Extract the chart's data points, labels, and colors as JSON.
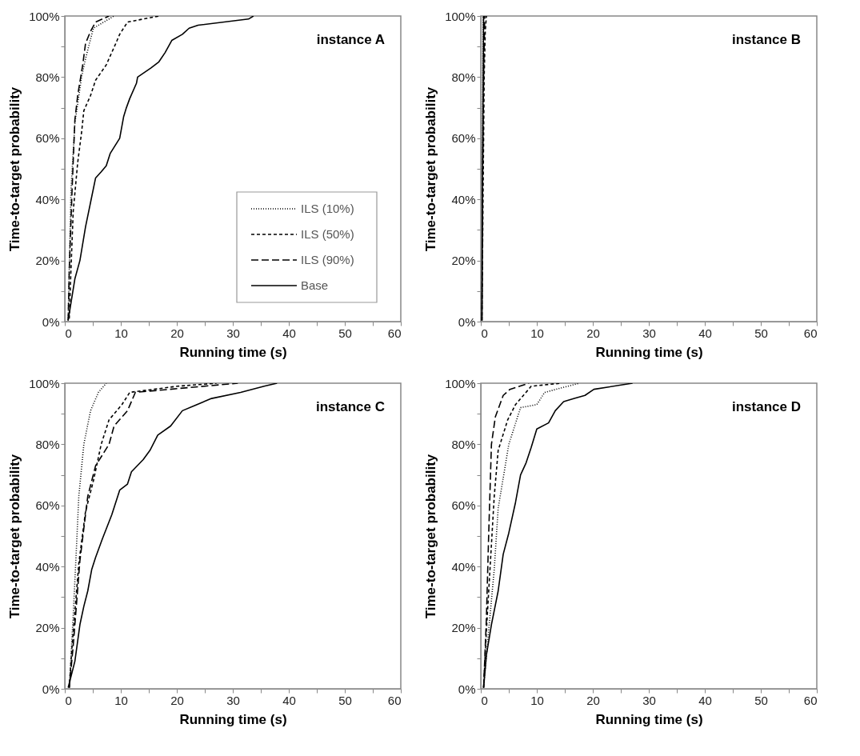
{
  "chart_data": [
    {
      "type": "line",
      "title": "instance A",
      "xlabel": "Running time (s)",
      "ylabel": "Time-to-target probability",
      "legend": "bottom right",
      "xlim": [
        0,
        60
      ],
      "ylim": [
        0,
        100
      ],
      "xticks": [
        0,
        {
          "value": 5,
          "label": null
        },
        10,
        {
          "value": 15,
          "label": null
        },
        20,
        {
          "value": 25,
          "label": null
        },
        30,
        {
          "value": 35,
          "label": null
        },
        40,
        {
          "value": 45,
          "label": null
        },
        50,
        {
          "value": 55,
          "label": null
        },
        60
      ],
      "yticks": [
        {
          "value": 0,
          "label": "0%"
        },
        {
          "value": 10,
          "label": null
        },
        {
          "value": 20,
          "label": "20%"
        },
        {
          "value": 30,
          "label": null
        },
        {
          "value": 40,
          "label": "40%"
        },
        {
          "value": 50,
          "label": null
        },
        {
          "value": 60,
          "label": "60%"
        },
        {
          "value": 70,
          "label": null
        },
        {
          "value": 80,
          "label": "80%"
        },
        {
          "value": 90,
          "label": null
        },
        {
          "value": 100,
          "label": "100%"
        }
      ],
      "series": [
        {
          "name": "ILS (10%)",
          "color": "#000000",
          "line_style": "dotted",
          "x": [
            0.6,
            1.1,
            1.8,
            3.0,
            3.7,
            5.1,
            8.8
          ],
          "values": [
            0.4,
            43,
            65,
            80,
            86,
            96,
            100
          ]
        },
        {
          "name": "ILS (50%)",
          "color": "#000000",
          "line_style": "dashed",
          "x": [
            0.8,
            1.1,
            1.5,
            2.3,
            3.0,
            3.4,
            4.6,
            5.5,
            7.4,
            9.1,
            9.8,
            11.2,
            16.8
          ],
          "values": [
            1,
            17,
            36,
            52,
            62,
            69,
            74,
            79,
            84,
            91,
            94,
            98,
            100
          ]
        },
        {
          "name": "ILS (90%)",
          "color": "#000000",
          "line_style": "dashed",
          "x": [
            0.6,
            0.8,
            1.3,
            1.8,
            2.3,
            3.2,
            3.7,
            4.6,
            5.5,
            7.9
          ],
          "values": [
            0.4,
            17,
            43,
            66,
            74,
            84,
            91,
            95,
            98,
            100
          ]
        },
        {
          "name": "Base",
          "color": "#000000",
          "line_style": "solid",
          "x": [
            0.6,
            1.8,
            2.7,
            3.7,
            4.6,
            5.5,
            6.5,
            7.4,
            8.1,
            9.8,
            10.5,
            11.0,
            11.6,
            12.8,
            13.0,
            15.4,
            16.8,
            17.9,
            19.1,
            21.0,
            22.2,
            23.8,
            32.8,
            33.7
          ],
          "values": [
            0.4,
            14,
            20,
            31,
            39,
            47,
            49,
            51,
            55,
            60,
            67,
            70,
            73,
            78,
            80,
            83,
            85,
            88,
            92,
            94,
            96,
            97,
            99,
            100
          ]
        }
      ]
    },
    {
      "type": "line",
      "title": "instance B",
      "xlabel": "Running time (s)",
      "ylabel": "Time-to-target probability",
      "xlim": [
        0,
        60
      ],
      "ylim": [
        0,
        100
      ],
      "xticks": [
        0,
        {
          "value": 5,
          "label": null
        },
        10,
        {
          "value": 15,
          "label": null
        },
        20,
        {
          "value": 25,
          "label": null
        },
        30,
        {
          "value": 35,
          "label": null
        },
        40,
        {
          "value": 45,
          "label": null
        },
        50,
        {
          "value": 55,
          "label": null
        },
        60
      ],
      "yticks": [
        {
          "value": 0,
          "label": "0%"
        },
        {
          "value": 10,
          "label": null
        },
        {
          "value": 20,
          "label": "20%"
        },
        {
          "value": 30,
          "label": null
        },
        {
          "value": 40,
          "label": "40%"
        },
        {
          "value": 50,
          "label": null
        },
        {
          "value": 60,
          "label": "60%"
        },
        {
          "value": 70,
          "label": null
        },
        {
          "value": 80,
          "label": "80%"
        },
        {
          "value": 90,
          "label": null
        },
        {
          "value": 100,
          "label": "100%"
        }
      ],
      "series": [
        {
          "color": "#000000",
          "line_style": "dotted",
          "x": [
            0.2,
            0.3,
            0.35,
            0.4
          ],
          "values": [
            0.4,
            30,
            70,
            100
          ]
        },
        {
          "color": "#000000",
          "line_style": "dashed",
          "x": [
            0.2,
            0.4,
            0.6,
            0.8,
            1.0
          ],
          "values": [
            0.4,
            40,
            80,
            95,
            100
          ]
        },
        {
          "color": "#000000",
          "line_style": "dashed",
          "x": [
            0.2,
            0.3,
            0.5,
            0.7
          ],
          "values": [
            0.4,
            40,
            80,
            100
          ]
        },
        {
          "color": "#000000",
          "line_style": "solid",
          "x": [
            0.2,
            0.3,
            0.5
          ],
          "values": [
            0.4,
            50,
            100
          ]
        }
      ]
    },
    {
      "type": "line",
      "title": "instance C",
      "xlabel": "Running time (s)",
      "ylabel": "Time-to-target probability",
      "xlim": [
        0,
        60
      ],
      "ylim": [
        0,
        100
      ],
      "xticks": [
        0,
        {
          "value": 5,
          "label": null
        },
        10,
        {
          "value": 15,
          "label": null
        },
        20,
        {
          "value": 25,
          "label": null
        },
        30,
        {
          "value": 35,
          "label": null
        },
        40,
        {
          "value": 45,
          "label": null
        },
        50,
        {
          "value": 55,
          "label": null
        },
        60
      ],
      "yticks": [
        {
          "value": 0,
          "label": "0%"
        },
        {
          "value": 10,
          "label": null
        },
        {
          "value": 20,
          "label": "20%"
        },
        {
          "value": 30,
          "label": null
        },
        {
          "value": 40,
          "label": "40%"
        },
        {
          "value": 50,
          "label": null
        },
        {
          "value": 60,
          "label": "60%"
        },
        {
          "value": 70,
          "label": null
        },
        {
          "value": 80,
          "label": "80%"
        },
        {
          "value": 90,
          "label": null
        },
        {
          "value": 100,
          "label": "100%"
        }
      ],
      "series": [
        {
          "color": "#000000",
          "line_style": "dotted",
          "x": [
            0.8,
            1.5,
            2.0,
            2.5,
            3.4,
            4.6,
            6.0,
            7.4
          ],
          "values": [
            0.4,
            24,
            43,
            63,
            80,
            91,
            97,
            100
          ]
        },
        {
          "color": "#000000",
          "line_style": "dashed",
          "x": [
            0.8,
            1.3,
            2.5,
            3.7,
            5.1,
            6.5,
            7.9,
            10.2,
            11.6,
            20.1,
            27.1
          ],
          "values": [
            0.4,
            14,
            41,
            58,
            68,
            80,
            88,
            93,
            97,
            99,
            100
          ]
        },
        {
          "color": "#000000",
          "line_style": "dashed",
          "x": [
            0.8,
            1.5,
            2.7,
            4.1,
            5.5,
            7.9,
            8.8,
            11.2,
            12.6,
            30.9
          ],
          "values": [
            0.4,
            14,
            42,
            63,
            73,
            80,
            86,
            91,
            97,
            100
          ]
        },
        {
          "color": "#000000",
          "line_style": "solid",
          "x": [
            0.6,
            1.8,
            2.7,
            3.4,
            4.1,
            4.8,
            5.5,
            6.7,
            8.4,
            9.8,
            11.2,
            11.9,
            14.0,
            15.2,
            16.6,
            18.9,
            21.0,
            23.6,
            26.2,
            31.4,
            35.6,
            37.9
          ],
          "values": [
            0.4,
            9,
            21,
            27,
            32,
            39,
            43,
            49,
            57,
            65,
            67,
            71,
            75,
            78,
            83,
            86,
            91,
            93,
            95,
            97,
            99,
            100
          ]
        }
      ]
    },
    {
      "type": "line",
      "title": "instance D",
      "xlabel": "Running time (s)",
      "ylabel": "Time-to-target probability",
      "xlim": [
        0,
        60
      ],
      "ylim": [
        0,
        100
      ],
      "xticks": [
        0,
        {
          "value": 5,
          "label": null
        },
        10,
        {
          "value": 15,
          "label": null
        },
        20,
        {
          "value": 25,
          "label": null
        },
        30,
        {
          "value": 35,
          "label": null
        },
        40,
        {
          "value": 45,
          "label": null
        },
        50,
        {
          "value": 55,
          "label": null
        },
        60
      ],
      "yticks": [
        {
          "value": 0,
          "label": "0%"
        },
        {
          "value": 10,
          "label": null
        },
        {
          "value": 20,
          "label": "20%"
        },
        {
          "value": 30,
          "label": null
        },
        {
          "value": 40,
          "label": "40%"
        },
        {
          "value": 50,
          "label": null
        },
        {
          "value": 60,
          "label": "60%"
        },
        {
          "value": 70,
          "label": null
        },
        {
          "value": 80,
          "label": "80%"
        },
        {
          "value": 90,
          "label": null
        },
        {
          "value": 100,
          "label": "100%"
        }
      ],
      "series": [
        {
          "color": "#000000",
          "line_style": "dotted",
          "x": [
            0.5,
            1.4,
            2.4,
            3.1,
            5.0,
            7.1,
            10.0,
            11.4,
            17.6
          ],
          "values": [
            0.4,
            19,
            39,
            59,
            80,
            92,
            93,
            97,
            100
          ]
        },
        {
          "color": "#000000",
          "line_style": "dashed",
          "x": [
            0.5,
            1.0,
            1.7,
            2.4,
            3.1,
            4.8,
            6.2,
            9.0,
            14.3
          ],
          "values": [
            0.4,
            19,
            41,
            63,
            78,
            88,
            93,
            99,
            100
          ]
        },
        {
          "color": "#000000",
          "line_style": "dashed",
          "x": [
            0.5,
            1.0,
            1.4,
            1.9,
            2.6,
            4.0,
            5.2,
            8.6
          ],
          "values": [
            0.4,
            23,
            50,
            80,
            89,
            96,
            98,
            100
          ]
        },
        {
          "color": "#000000",
          "line_style": "solid",
          "x": [
            0.5,
            1.0,
            1.9,
            3.1,
            4.0,
            5.0,
            6.2,
            7.1,
            8.1,
            9.0,
            10.0,
            12.1,
            13.3,
            14.8,
            16.7,
            18.6,
            20.2,
            27.1
          ],
          "values": [
            0.4,
            11,
            21,
            32,
            44,
            51,
            61,
            70,
            74,
            79,
            85,
            87,
            91,
            94,
            95,
            96,
            98,
            100
          ]
        }
      ]
    }
  ]
}
